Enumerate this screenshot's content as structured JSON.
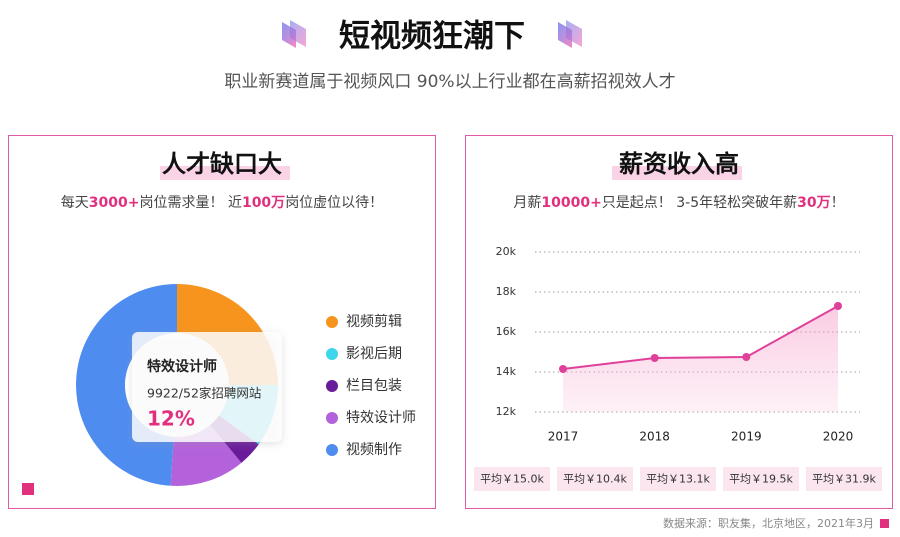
{
  "header": {
    "title": "短视频狂潮下",
    "subtitle": "职业新赛道属于视频风口  90%以上行业都在高薪招视效人才"
  },
  "chart_data": [
    {
      "type": "pie",
      "title": "人才缺口大",
      "subtitle": [
        {
          "text": "每天",
          "highlight": false
        },
        {
          "text": "3000+",
          "highlight": true
        },
        {
          "text": "岗位需求量！ 近",
          "highlight": false
        },
        {
          "text": "100万",
          "highlight": true
        },
        {
          "text": "岗位虚位以待！",
          "highlight": false
        }
      ],
      "categories": [
        "视频剪辑",
        "影视后期",
        "栏目包装",
        "特效设计师",
        "视频制作"
      ],
      "values": [
        25,
        10,
        4,
        12,
        49
      ],
      "value_labels": [
        null,
        null,
        null,
        "12%",
        null
      ],
      "colors": [
        "#f7941d",
        "#3fd6ec",
        "#6a1b9a",
        "#b462dc",
        "#4f8cf0"
      ],
      "tooltip": {
        "index": 3,
        "text": "9922/52家招聘网站"
      },
      "legend": "right"
    },
    {
      "type": "line",
      "title": "薪资收入高",
      "subtitle": [
        {
          "text": "月薪",
          "highlight": false
        },
        {
          "text": "10000+",
          "highlight": true
        },
        {
          "text": "只是起点！ 3-5年轻松突破年薪",
          "highlight": false
        },
        {
          "text": "30万",
          "highlight": true
        },
        {
          "text": "！",
          "highlight": false
        }
      ],
      "categories": [
        "2017",
        "2018",
        "2019",
        "2020"
      ],
      "values": [
        14150,
        14700,
        14750,
        17300
      ],
      "color": "#e0409a",
      "ylim": [
        12000,
        20000
      ],
      "yticks": [
        {
          "value": 12000,
          "label": "12k"
        },
        {
          "value": 14000,
          "label": "14k"
        },
        {
          "value": 16000,
          "label": "16k"
        },
        {
          "value": 18000,
          "label": "18k"
        },
        {
          "value": 20000,
          "label": "20k"
        }
      ],
      "grid": true,
      "averages": [
        "平均￥15.0k",
        "平均￥10.4k",
        "平均￥13.1k",
        "平均￥19.5k",
        "平均￥31.9k"
      ]
    }
  ],
  "footer": {
    "source": "数据来源：职友集，北京地区，2021年3月"
  }
}
